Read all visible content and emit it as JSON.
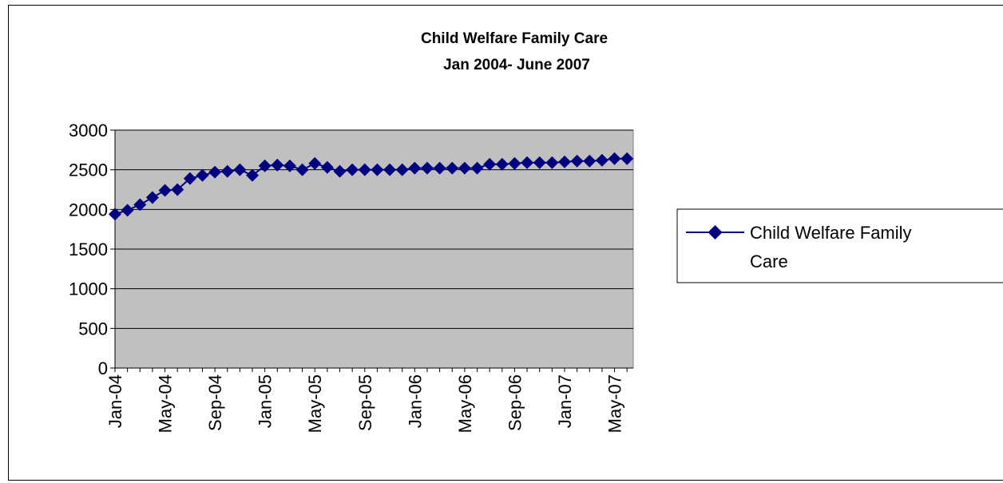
{
  "chart_data": {
    "type": "line",
    "title_lines": [
      "Child Welfare Family Care",
      "Jan 2004- June 2007"
    ],
    "xlabel": "",
    "ylabel": "",
    "ylim": [
      0,
      3000
    ],
    "yticks": [
      "0",
      "500",
      "1000",
      "1500",
      "2000",
      "2500",
      "3000"
    ],
    "x_tick_labels": [
      "Jan-04",
      "May-04",
      "Sep-04",
      "Jan-05",
      "May-05",
      "Sep-05",
      "Jan-06",
      "May-06",
      "Sep-06",
      "Jan-07",
      "May-07"
    ],
    "x": [
      "Jan-04",
      "Feb-04",
      "Mar-04",
      "Apr-04",
      "May-04",
      "Jun-04",
      "Jul-04",
      "Aug-04",
      "Sep-04",
      "Oct-04",
      "Nov-04",
      "Dec-04",
      "Jan-05",
      "Feb-05",
      "Mar-05",
      "Apr-05",
      "May-05",
      "Jun-05",
      "Jul-05",
      "Aug-05",
      "Sep-05",
      "Oct-05",
      "Nov-05",
      "Dec-05",
      "Jan-06",
      "Feb-06",
      "Mar-06",
      "Apr-06",
      "May-06",
      "Jun-06",
      "Jul-06",
      "Aug-06",
      "Sep-06",
      "Oct-06",
      "Nov-06",
      "Dec-06",
      "Jan-07",
      "Feb-07",
      "Mar-07",
      "Apr-07",
      "May-07",
      "Jun-07"
    ],
    "series": [
      {
        "name": "Child Welfare Family Care",
        "color": "#000080",
        "marker": "diamond",
        "values": [
          1940,
          1990,
          2060,
          2150,
          2240,
          2250,
          2390,
          2430,
          2470,
          2480,
          2500,
          2430,
          2550,
          2560,
          2550,
          2500,
          2580,
          2530,
          2480,
          2500,
          2500,
          2500,
          2500,
          2500,
          2520,
          2520,
          2520,
          2520,
          2520,
          2520,
          2570,
          2570,
          2580,
          2590,
          2590,
          2590,
          2600,
          2610,
          2610,
          2620,
          2640,
          2640
        ]
      }
    ],
    "plot_background": "#c0c0c0",
    "grid": true,
    "legend_position": "right"
  }
}
